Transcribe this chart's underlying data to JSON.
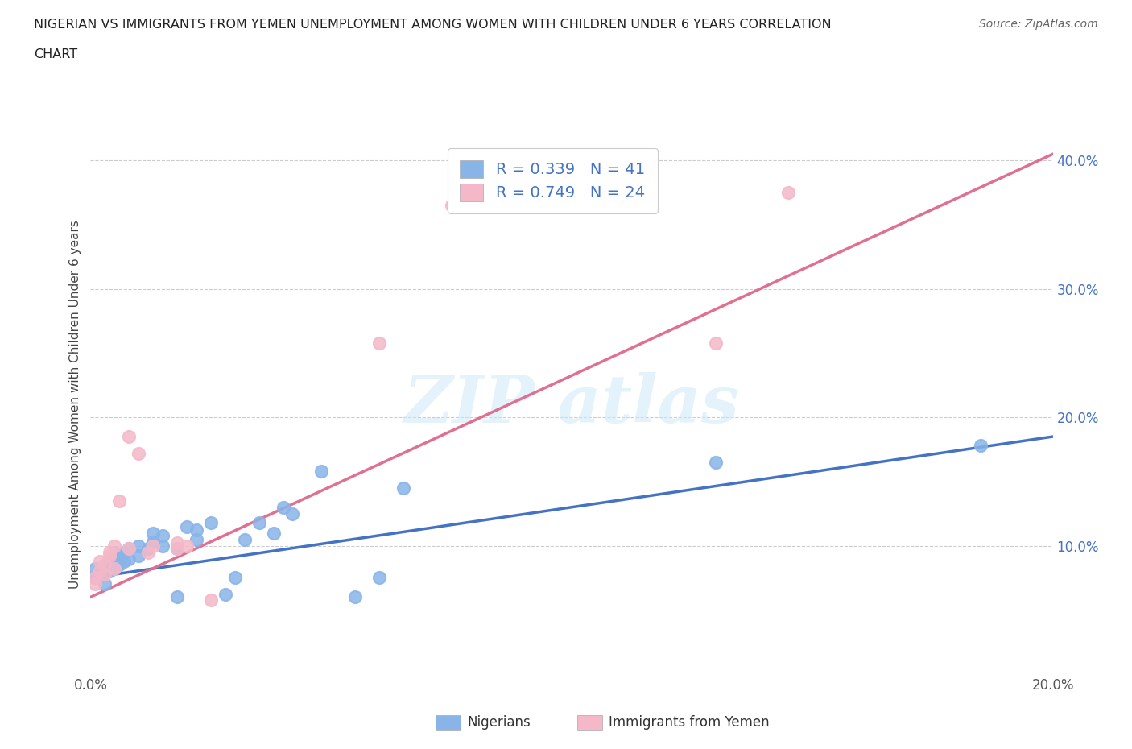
{
  "title_line1": "NIGERIAN VS IMMIGRANTS FROM YEMEN UNEMPLOYMENT AMONG WOMEN WITH CHILDREN UNDER 6 YEARS CORRELATION",
  "title_line2": "CHART",
  "source": "Source: ZipAtlas.com",
  "ylabel": "Unemployment Among Women with Children Under 6 years",
  "xlim": [
    0.0,
    0.2
  ],
  "ylim": [
    0.0,
    0.42
  ],
  "xticks": [
    0.0,
    0.05,
    0.1,
    0.15,
    0.2
  ],
  "yticks": [
    0.1,
    0.2,
    0.3,
    0.4
  ],
  "ytick_labels": [
    "10.0%",
    "20.0%",
    "30.0%",
    "40.0%"
  ],
  "xtick_labels": [
    "0.0%",
    "",
    "",
    "",
    "20.0%"
  ],
  "nigerian_color": "#89b4e8",
  "nigerian_line_color": "#4472c4",
  "yemen_color": "#f4b8c8",
  "yemen_line_color": "#e07090",
  "nigerian_R": 0.339,
  "nigerian_N": 41,
  "yemen_R": 0.749,
  "yemen_N": 24,
  "nigerian_scatter": [
    [
      0.001,
      0.075
    ],
    [
      0.001,
      0.082
    ],
    [
      0.002,
      0.078
    ],
    [
      0.003,
      0.07
    ],
    [
      0.003,
      0.083
    ],
    [
      0.004,
      0.08
    ],
    [
      0.004,
      0.088
    ],
    [
      0.005,
      0.09
    ],
    [
      0.005,
      0.095
    ],
    [
      0.006,
      0.085
    ],
    [
      0.006,
      0.092
    ],
    [
      0.007,
      0.088
    ],
    [
      0.007,
      0.095
    ],
    [
      0.008,
      0.09
    ],
    [
      0.008,
      0.098
    ],
    [
      0.01,
      0.092
    ],
    [
      0.01,
      0.1
    ],
    [
      0.012,
      0.098
    ],
    [
      0.013,
      0.103
    ],
    [
      0.013,
      0.11
    ],
    [
      0.015,
      0.1
    ],
    [
      0.015,
      0.108
    ],
    [
      0.018,
      0.06
    ],
    [
      0.018,
      0.098
    ],
    [
      0.02,
      0.115
    ],
    [
      0.022,
      0.105
    ],
    [
      0.022,
      0.112
    ],
    [
      0.025,
      0.118
    ],
    [
      0.028,
      0.062
    ],
    [
      0.03,
      0.075
    ],
    [
      0.032,
      0.105
    ],
    [
      0.035,
      0.118
    ],
    [
      0.038,
      0.11
    ],
    [
      0.04,
      0.13
    ],
    [
      0.042,
      0.125
    ],
    [
      0.048,
      0.158
    ],
    [
      0.055,
      0.06
    ],
    [
      0.06,
      0.075
    ],
    [
      0.065,
      0.145
    ],
    [
      0.13,
      0.165
    ],
    [
      0.185,
      0.178
    ]
  ],
  "yemen_scatter": [
    [
      0.001,
      0.07
    ],
    [
      0.001,
      0.075
    ],
    [
      0.002,
      0.08
    ],
    [
      0.002,
      0.088
    ],
    [
      0.003,
      0.078
    ],
    [
      0.003,
      0.085
    ],
    [
      0.004,
      0.092
    ],
    [
      0.004,
      0.095
    ],
    [
      0.005,
      0.082
    ],
    [
      0.005,
      0.1
    ],
    [
      0.006,
      0.135
    ],
    [
      0.008,
      0.098
    ],
    [
      0.008,
      0.185
    ],
    [
      0.01,
      0.172
    ],
    [
      0.012,
      0.095
    ],
    [
      0.013,
      0.1
    ],
    [
      0.018,
      0.098
    ],
    [
      0.018,
      0.102
    ],
    [
      0.02,
      0.1
    ],
    [
      0.025,
      0.058
    ],
    [
      0.06,
      0.258
    ],
    [
      0.075,
      0.365
    ],
    [
      0.13,
      0.258
    ],
    [
      0.145,
      0.375
    ]
  ],
  "nigerian_line": [
    [
      0.0,
      0.075
    ],
    [
      0.2,
      0.185
    ]
  ],
  "yemen_line": [
    [
      0.0,
      0.06
    ],
    [
      0.2,
      0.405
    ]
  ]
}
